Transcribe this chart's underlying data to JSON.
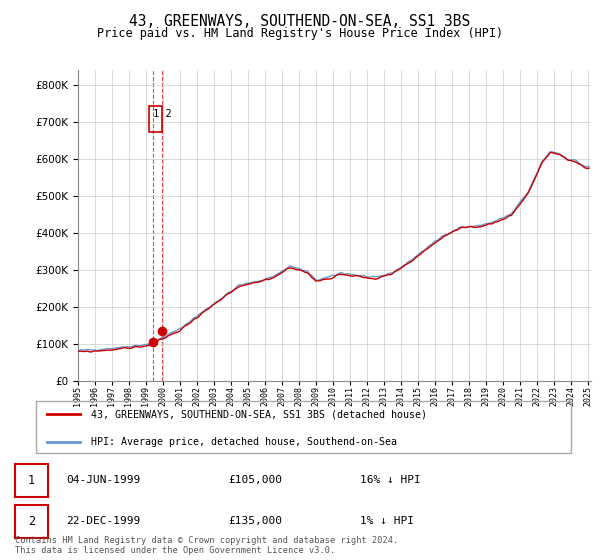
{
  "title": "43, GREENWAYS, SOUTHEND-ON-SEA, SS1 3BS",
  "subtitle": "Price paid vs. HM Land Registry's House Price Index (HPI)",
  "legend_line1": "43, GREENWAYS, SOUTHEND-ON-SEA, SS1 3BS (detached house)",
  "legend_line2": "HPI: Average price, detached house, Southend-on-Sea",
  "footer": "Contains HM Land Registry data © Crown copyright and database right 2024.\nThis data is licensed under the Open Government Licence v3.0.",
  "transactions": [
    {
      "num": 1,
      "date": "04-JUN-1999",
      "price": "£105,000",
      "hpi_diff": "16% ↓ HPI"
    },
    {
      "num": 2,
      "date": "22-DEC-1999",
      "price": "£135,000",
      "hpi_diff": "1% ↓ HPI"
    }
  ],
  "sale1_year": 1999.42,
  "sale1_price": 105000,
  "sale2_year": 1999.97,
  "sale2_price": 135000,
  "ylim": [
    0,
    840000
  ],
  "yticks": [
    0,
    100000,
    200000,
    300000,
    400000,
    500000,
    600000,
    700000,
    800000
  ],
  "xlim_start": 1995.0,
  "xlim_end": 2025.2,
  "red_color": "#cc0000",
  "blue_color": "#6699cc",
  "grid_color": "#cccccc",
  "background_color": "#ffffff"
}
